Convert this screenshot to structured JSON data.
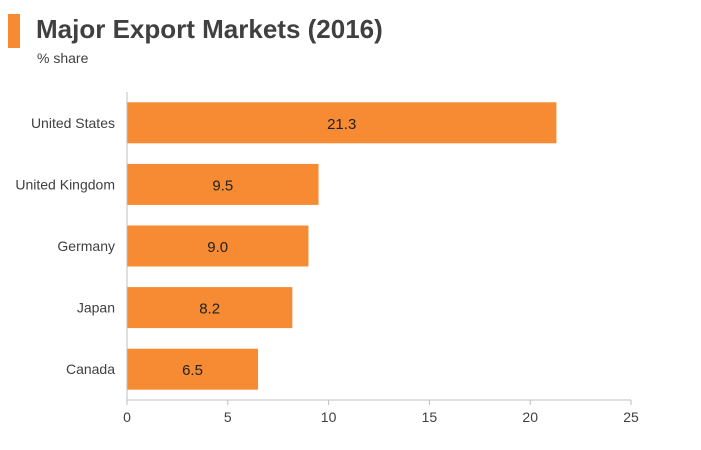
{
  "header": {
    "title": "Major Export Markets (2016)",
    "subtitle": "% share"
  },
  "colors": {
    "accent": "#f68b33",
    "bar": "#f68b33",
    "axis": "#bfbfbf",
    "text": "#404040"
  },
  "chart_data": {
    "type": "bar",
    "orientation": "horizontal",
    "title": "Major Export Markets (2016)",
    "subtitle": "% share",
    "xlabel": "",
    "ylabel": "",
    "categories": [
      "United States",
      "United Kingdom",
      "Germany",
      "Japan",
      "Canada"
    ],
    "values": [
      21.3,
      9.5,
      9.0,
      8.2,
      6.5
    ],
    "value_labels": [
      "21.3",
      "9.5",
      "9.0",
      "8.2",
      "6.5"
    ],
    "xlim": [
      0,
      25
    ],
    "xticks": [
      0,
      5,
      10,
      15,
      20,
      25
    ],
    "grid": false,
    "legend": "none"
  }
}
